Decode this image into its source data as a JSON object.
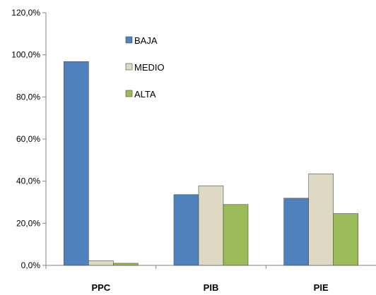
{
  "chart_data": {
    "type": "bar",
    "title": "",
    "xlabel": "",
    "ylabel": "",
    "categories": [
      "PPC",
      "PIB",
      "PIE"
    ],
    "series": [
      {
        "name": "BAJA",
        "values": [
          96.8,
          33.6,
          31.9
        ],
        "color": "#4F81BD"
      },
      {
        "name": "MEDIO",
        "values": [
          2.2,
          37.8,
          43.5
        ],
        "color": "#DDD9C3"
      },
      {
        "name": "ALTA",
        "values": [
          1.0,
          28.9,
          24.6
        ],
        "color": "#9BBB59"
      }
    ],
    "ylim": [
      0,
      120
    ],
    "yticks": [
      0,
      20,
      40,
      60,
      80,
      100,
      120
    ],
    "ytick_labels": [
      "0,0%",
      "20,0%",
      "40,0%",
      "60,0%",
      "80,0%",
      "100,0%",
      "120,0%"
    ],
    "grid": false,
    "legend_position": "top-center"
  }
}
